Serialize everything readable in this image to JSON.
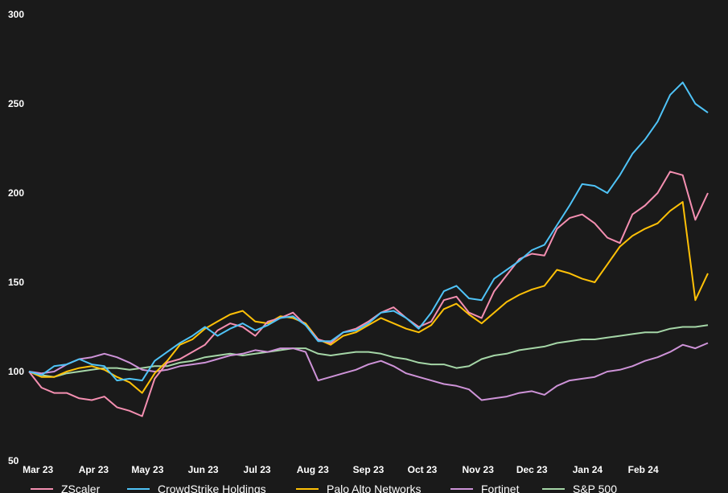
{
  "chart_data": {
    "type": "line",
    "title": "",
    "xlabel": "",
    "ylabel": "",
    "ylim": [
      50,
      300
    ],
    "y_ticks": [
      "300",
      "250",
      "200",
      "150",
      "100",
      "50"
    ],
    "x_ticks": [
      "Mar 23",
      "Apr 23",
      "May 23",
      "Jun 23",
      "Jul 23",
      "Aug 23",
      "Sep 23",
      "Oct 23",
      "Nov 23",
      "Dec 23",
      "Jan 24",
      "Feb 24"
    ],
    "x": [
      "2023-02-24",
      "2023-03-03",
      "2023-03-10",
      "2023-03-17",
      "2023-03-24",
      "2023-03-31",
      "2023-04-07",
      "2023-04-14",
      "2023-04-21",
      "2023-04-28",
      "2023-05-05",
      "2023-05-12",
      "2023-05-19",
      "2023-05-26",
      "2023-06-02",
      "2023-06-09",
      "2023-06-16",
      "2023-06-23",
      "2023-06-30",
      "2023-07-07",
      "2023-07-14",
      "2023-07-21",
      "2023-07-28",
      "2023-08-04",
      "2023-08-11",
      "2023-08-18",
      "2023-08-25",
      "2023-09-01",
      "2023-09-08",
      "2023-09-15",
      "2023-09-22",
      "2023-09-29",
      "2023-10-06",
      "2023-10-13",
      "2023-10-20",
      "2023-10-27",
      "2023-11-03",
      "2023-11-10",
      "2023-11-17",
      "2023-11-24",
      "2023-12-01",
      "2023-12-08",
      "2023-12-15",
      "2023-12-22",
      "2023-12-29",
      "2024-01-05",
      "2024-01-12",
      "2024-01-19",
      "2024-01-26",
      "2024-02-02",
      "2024-02-09",
      "2024-02-16",
      "2024-02-23",
      "2024-03-01",
      "2024-03-08"
    ],
    "grid": false,
    "legend": "bottom",
    "series": [
      {
        "name": "ZScaler",
        "color": "#f48fb1",
        "values": [
          100,
          91,
          88,
          88,
          85,
          84,
          86,
          80,
          78,
          75,
          96,
          105,
          107,
          111,
          115,
          123,
          127,
          125,
          120,
          128,
          130,
          133,
          126,
          118,
          116,
          122,
          124,
          128,
          133,
          136,
          130,
          125,
          128,
          140,
          142,
          133,
          130,
          145,
          154,
          163,
          166,
          165,
          180,
          186,
          188,
          183,
          175,
          172,
          188,
          193,
          200,
          212,
          210,
          185,
          200
        ]
      },
      {
        "name": "CrowdStrike Holdings",
        "color": "#4fc3f7",
        "values": [
          100,
          98,
          103,
          104,
          107,
          104,
          103,
          95,
          96,
          95,
          106,
          111,
          116,
          120,
          125,
          120,
          124,
          127,
          123,
          126,
          130,
          131,
          126,
          117,
          117,
          122,
          123,
          127,
          133,
          134,
          130,
          124,
          133,
          145,
          148,
          141,
          140,
          152,
          157,
          162,
          168,
          171,
          182,
          193,
          205,
          204,
          200,
          210,
          222,
          230,
          240,
          255,
          262,
          250,
          245
        ]
      },
      {
        "name": "Palo Alto Networks",
        "color": "#ffc107",
        "values": [
          100,
          97,
          97,
          100,
          102,
          103,
          101,
          97,
          94,
          88,
          99,
          106,
          115,
          118,
          124,
          128,
          132,
          134,
          128,
          127,
          131,
          130,
          127,
          118,
          115,
          120,
          122,
          126,
          130,
          127,
          124,
          122,
          126,
          135,
          138,
          132,
          127,
          133,
          139,
          143,
          146,
          148,
          157,
          155,
          152,
          150,
          160,
          170,
          176,
          180,
          183,
          190,
          195,
          140,
          155
        ]
      },
      {
        "name": "Fortinet",
        "color": "#ce93d8",
        "values": [
          100,
          99,
          100,
          104,
          107,
          108,
          110,
          108,
          105,
          101,
          100,
          101,
          103,
          104,
          105,
          107,
          109,
          110,
          112,
          111,
          113,
          113,
          111,
          95,
          97,
          99,
          101,
          104,
          106,
          103,
          99,
          97,
          95,
          93,
          92,
          90,
          84,
          85,
          86,
          88,
          89,
          87,
          92,
          95,
          96,
          97,
          100,
          101,
          103,
          106,
          108,
          111,
          115,
          113,
          116
        ]
      },
      {
        "name": "S&P 500",
        "color": "#a5d6a7",
        "values": [
          100,
          98,
          97,
          99,
          100,
          101,
          102,
          102,
          101,
          102,
          103,
          103,
          105,
          106,
          108,
          109,
          110,
          109,
          110,
          111,
          112,
          113,
          113,
          110,
          109,
          110,
          111,
          111,
          110,
          108,
          107,
          105,
          104,
          104,
          102,
          103,
          107,
          109,
          110,
          112,
          113,
          114,
          116,
          117,
          118,
          118,
          119,
          120,
          121,
          122,
          122,
          124,
          125,
          125,
          126
        ]
      }
    ]
  }
}
